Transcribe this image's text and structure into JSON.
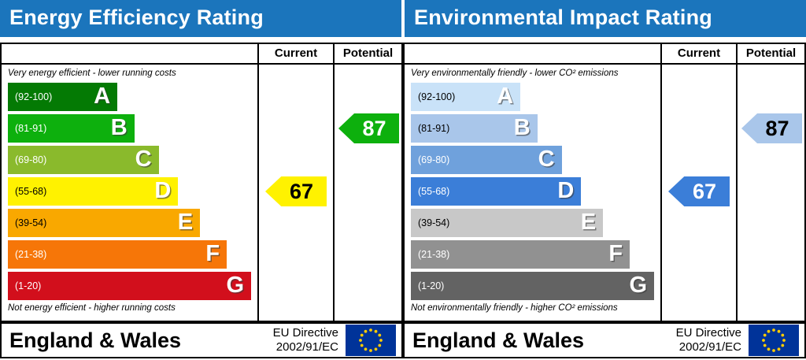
{
  "chart_data": [
    {
      "type": "bar",
      "orientation": "horizontal",
      "title": "Energy Efficiency Rating",
      "categories": [
        "A",
        "B",
        "C",
        "D",
        "E",
        "F",
        "G"
      ],
      "band_ranges": [
        "92-100",
        "81-91",
        "69-80",
        "55-68",
        "39-54",
        "21-38",
        "1-20"
      ],
      "scale": [
        1,
        100
      ],
      "series": [
        {
          "name": "Current",
          "values": [
            67
          ],
          "band": "D"
        },
        {
          "name": "Potential",
          "values": [
            87
          ],
          "band": "B"
        }
      ],
      "top_label": "Very energy efficient - lower running costs",
      "bottom_label": "Not energy efficient - higher running costs"
    },
    {
      "type": "bar",
      "orientation": "horizontal",
      "title": "Environmental Impact Rating",
      "categories": [
        "A",
        "B",
        "C",
        "D",
        "E",
        "F",
        "G"
      ],
      "band_ranges": [
        "92-100",
        "81-91",
        "69-80",
        "55-68",
        "39-54",
        "21-38",
        "1-20"
      ],
      "scale": [
        1,
        100
      ],
      "series": [
        {
          "name": "Current",
          "values": [
            67
          ],
          "band": "D"
        },
        {
          "name": "Potential",
          "values": [
            87
          ],
          "band": "B"
        }
      ],
      "top_label": "Very environmentally friendly - lower CO² emissions",
      "bottom_label": "Not environmentally friendly - higher CO² emissions"
    }
  ],
  "panels": [
    {
      "title": "Energy Efficiency Rating",
      "columns": {
        "current": "Current",
        "potential": "Potential"
      },
      "top_note": "Very energy efficient - lower running costs",
      "bottom_note": "Not energy efficient - higher running costs",
      "bands": [
        {
          "letter": "A",
          "range": "(92-100)",
          "color": "#047a04",
          "range_color": "#ffffff",
          "width_pct": 45
        },
        {
          "letter": "B",
          "range": "(81-91)",
          "color": "#0db00d",
          "range_color": "#ffffff",
          "width_pct": 52
        },
        {
          "letter": "C",
          "range": "(69-80)",
          "color": "#8aba2c",
          "range_color": "#ffffff",
          "width_pct": 62
        },
        {
          "letter": "D",
          "range": "(55-68)",
          "color": "#fff200",
          "range_color": "#000000",
          "width_pct": 70
        },
        {
          "letter": "E",
          "range": "(39-54)",
          "color": "#f9a800",
          "range_color": "#000000",
          "width_pct": 79
        },
        {
          "letter": "F",
          "range": "(21-38)",
          "color": "#f67608",
          "range_color": "#ffffff",
          "width_pct": 90
        },
        {
          "letter": "G",
          "range": "(1-20)",
          "color": "#d20f1c",
          "range_color": "#ffffff",
          "width_pct": 100
        }
      ],
      "current": {
        "value": "67",
        "row_index": 3,
        "color": "#fff200",
        "text_color": "#000000"
      },
      "potential": {
        "value": "87",
        "row_index": 1,
        "color": "#0db00d",
        "text_color": "#ffffff"
      },
      "footer": {
        "region": "England & Wales",
        "directive": [
          "EU Directive",
          "2002/91/EC"
        ]
      }
    },
    {
      "title": "Environmental Impact Rating",
      "columns": {
        "current": "Current",
        "potential": "Potential"
      },
      "top_note": "Very environmentally friendly - lower CO² emissions",
      "bottom_note": "Not environmentally friendly - higher CO² emissions",
      "bands": [
        {
          "letter": "A",
          "range": "(92-100)",
          "color": "#c9e2f8",
          "range_color": "#000000",
          "width_pct": 45
        },
        {
          "letter": "B",
          "range": "(81-91)",
          "color": "#a9c6ea",
          "range_color": "#000000",
          "width_pct": 52
        },
        {
          "letter": "C",
          "range": "(69-80)",
          "color": "#6fa1dc",
          "range_color": "#ffffff",
          "width_pct": 62
        },
        {
          "letter": "D",
          "range": "(55-68)",
          "color": "#3b7ed8",
          "range_color": "#ffffff",
          "width_pct": 70
        },
        {
          "letter": "E",
          "range": "(39-54)",
          "color": "#c8c8c8",
          "range_color": "#000000",
          "width_pct": 79
        },
        {
          "letter": "F",
          "range": "(21-38)",
          "color": "#919191",
          "range_color": "#ffffff",
          "width_pct": 90
        },
        {
          "letter": "G",
          "range": "(1-20)",
          "color": "#636363",
          "range_color": "#ffffff",
          "width_pct": 100
        }
      ],
      "current": {
        "value": "67",
        "row_index": 3,
        "color": "#3b7ed8",
        "text_color": "#ffffff"
      },
      "potential": {
        "value": "87",
        "row_index": 1,
        "color": "#a9c6ea",
        "text_color": "#000000"
      },
      "footer": {
        "region": "England & Wales",
        "directive": [
          "EU Directive",
          "2002/91/EC"
        ]
      }
    }
  ],
  "flag": {
    "background": "#003399",
    "stars": "#ffcc00"
  }
}
